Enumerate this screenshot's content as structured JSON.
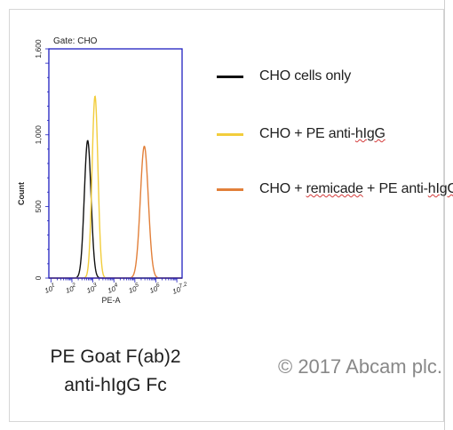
{
  "chart_data": {
    "type": "line",
    "gate_label": "Gate: CHO",
    "xlabel": "PE-A",
    "ylabel": "Count",
    "ylim": [
      0,
      1600
    ],
    "y_ticks": [
      {
        "value": 0,
        "label": "0"
      },
      {
        "value": 500,
        "label": "500"
      },
      {
        "value": 1000,
        "label": "1,000"
      },
      {
        "value": 1600,
        "label": "1,600"
      }
    ],
    "x_scale": "log",
    "xlim_exp": [
      0.9,
      7.25
    ],
    "x_ticks": [
      {
        "exp": 1,
        "label": "10^1"
      },
      {
        "exp": 2,
        "label": "10^2"
      },
      {
        "exp": 3,
        "label": "10^3"
      },
      {
        "exp": 4,
        "label": "10^4"
      },
      {
        "exp": 5,
        "label": "10^5"
      },
      {
        "exp": 6,
        "label": "10^6"
      },
      {
        "exp": 7.2,
        "label": "10^7.2"
      }
    ],
    "series": [
      {
        "name": "CHO cells only",
        "color": "#111111",
        "peaks": [
          {
            "center_exp": 2.75,
            "height": 960,
            "sigma": 0.16
          }
        ]
      },
      {
        "name": "CHO + PE anti-hIgG",
        "color": "#f2cd3c",
        "peaks": [
          {
            "center_exp": 3.1,
            "height": 1270,
            "sigma": 0.14
          }
        ]
      },
      {
        "name": "CHO + remicade + PE anti-hIgG",
        "color": "#e2803a",
        "peaks": [
          {
            "center_exp": 5.45,
            "height": 920,
            "sigma": 0.19
          }
        ]
      }
    ]
  },
  "legend": [
    {
      "parts": [
        {
          "text": "CHO cells only",
          "error": false
        }
      ],
      "color": "#111111"
    },
    {
      "parts": [
        {
          "text": "CHO + PE anti-",
          "error": false
        },
        {
          "text": "hIgG",
          "error": true
        }
      ],
      "color": "#f2cd3c"
    },
    {
      "parts": [
        {
          "text": "CHO + ",
          "error": false
        },
        {
          "text": "remicade",
          "error": true
        },
        {
          "text": " + PE anti-",
          "error": false
        },
        {
          "text": "hIgG",
          "error": true
        }
      ],
      "color": "#e2803a"
    }
  ],
  "caption": {
    "line1": "PE Goat F(ab)2",
    "line2": "anti-hIgG Fc"
  },
  "copyright": "© 2017 Abcam plc."
}
